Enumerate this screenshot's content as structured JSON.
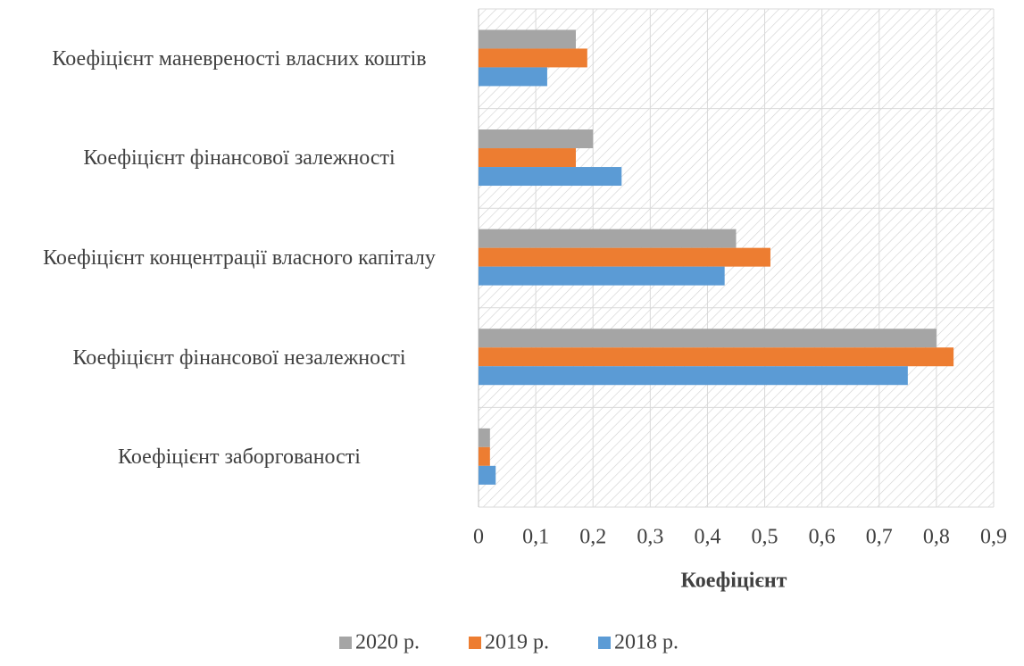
{
  "chart_data": {
    "type": "barh",
    "categories": [
      "Коефіцієнт  маневреності власних коштів",
      "Коефіцієнт  фінансової залежності",
      "Коефіцієнт  концентрації власного капіталу",
      "Коефіцієнт  фінансової незалежності",
      "Коефіцієнт  заборгованості"
    ],
    "series": [
      {
        "name": "2020 р.",
        "color": "#a5a5a5",
        "values": [
          0.17,
          0.2,
          0.45,
          0.8,
          0.02
        ]
      },
      {
        "name": "2019 р.",
        "color": "#ed7d31",
        "values": [
          0.19,
          0.17,
          0.51,
          0.83,
          0.02
        ]
      },
      {
        "name": "2018 р.",
        "color": "#5b9bd5",
        "values": [
          0.12,
          0.25,
          0.43,
          0.75,
          0.03
        ]
      }
    ],
    "xlabel": "Коефіцієнт",
    "xlim": [
      0,
      0.9
    ],
    "xticks": [
      0,
      {
        "value": 0.1,
        "label": "0,1"
      },
      {
        "value": 0.2,
        "label": "0,2"
      },
      {
        "value": 0.3,
        "label": "0,3"
      },
      {
        "value": 0.4,
        "label": "0,4"
      },
      {
        "value": 0.5,
        "label": "0,5"
      },
      {
        "value": 0.6,
        "label": "0,6"
      },
      {
        "value": 0.7,
        "label": "0,7"
      },
      {
        "value": 0.8,
        "label": "0,8"
      },
      {
        "value": 0.9,
        "label": "0,9"
      }
    ],
    "grid": true,
    "legend": "bottom"
  }
}
